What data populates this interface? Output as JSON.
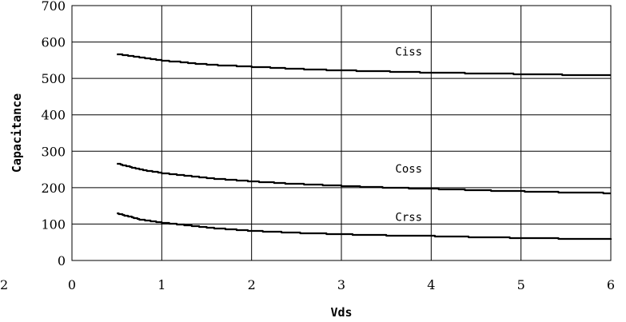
{
  "chart_data": {
    "type": "line",
    "title": "",
    "xlabel": "Vds",
    "ylabel": "Capacitance",
    "xlim": [
      0,
      6
    ],
    "ylim": [
      0,
      700
    ],
    "x_ticks": [
      "0",
      "1",
      "2",
      "3",
      "4",
      "5",
      "6"
    ],
    "y_ticks": [
      "0",
      "100",
      "200",
      "300",
      "400",
      "500",
      "600",
      "700"
    ],
    "grid": true,
    "legend": "none",
    "stray_tick_label": "2",
    "series": [
      {
        "name": "Ciss",
        "x": [
          0.5,
          0.75,
          1.0,
          1.5,
          2.0,
          2.5,
          3.0,
          3.5,
          4.0,
          4.5,
          5.0,
          5.5,
          6.0
        ],
        "values": [
          567,
          558,
          549,
          538,
          532,
          526,
          522,
          519,
          516,
          514,
          512,
          510,
          509
        ]
      },
      {
        "name": "Coss",
        "x": [
          0.5,
          0.75,
          1.0,
          1.5,
          2.0,
          2.5,
          3.0,
          3.5,
          4.0,
          4.5,
          5.0,
          5.5,
          6.0
        ],
        "values": [
          266,
          250,
          240,
          226,
          217,
          210,
          205,
          200,
          197,
          193,
          190,
          187,
          185
        ]
      },
      {
        "name": "Crss",
        "x": [
          0.5,
          0.75,
          1.0,
          1.5,
          2.0,
          2.5,
          3.0,
          3.5,
          4.0,
          4.5,
          5.0,
          5.5,
          6.0
        ],
        "values": [
          129,
          113,
          104,
          90,
          81,
          76,
          72,
          69,
          67,
          64,
          62,
          60,
          58
        ]
      }
    ],
    "series_label_positions": [
      {
        "name": "Ciss",
        "x": 3.75,
        "y": 563
      },
      {
        "name": "Coss",
        "x": 3.75,
        "y": 241
      },
      {
        "name": "Crss",
        "x": 3.75,
        "y": 109
      }
    ],
    "line_color": "#000000",
    "grid_color": "#000000"
  }
}
